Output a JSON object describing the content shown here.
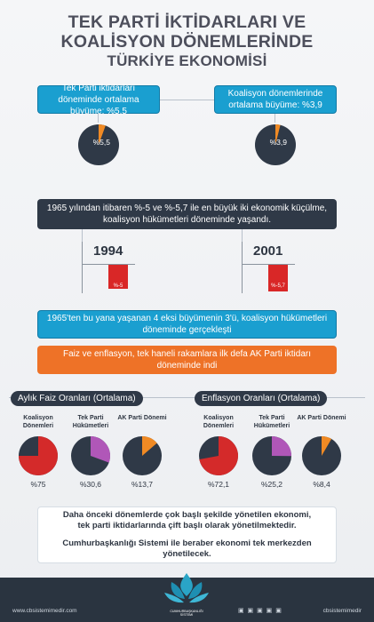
{
  "title": {
    "line1": "TEK PARTİ İKTİDARLARI VE",
    "line2": "KOALİSYON DÖNEMLERİNDE",
    "line3": "TÜRKİYE EKONOMİSİ"
  },
  "growth": {
    "left_box": "Tek Parti iktidarları döneminde ortalama büyüme: %5,5",
    "right_box": "Koalisyon dönemlerinde ortalama büyüme: %3,9",
    "left_pie_label": "%5,5",
    "right_pie_label": "%3,9",
    "left_value": 5.5,
    "right_value": 3.9
  },
  "contraction": {
    "text": "1965 yılından itibaren %-5 ve %-5,7 ile en büyük iki ekonomik küçülme, koalisyon hükümetleri döneminde yaşandı.",
    "bars": [
      {
        "year": "1994",
        "label": "%-5",
        "value": -5
      },
      {
        "year": "2001",
        "label": "%-5,7",
        "value": -5.7
      }
    ]
  },
  "facts": {
    "teal_box": "1965'ten bu yana yaşanan 4 eksi büyümenin 3'ü, koalisyon hükümetleri döneminde gerçekleşti",
    "orange_box": "Faiz ve enflasyon, tek haneli rakamlara ilk defa AK Parti iktidarı döneminde indi"
  },
  "interest": {
    "heading": "Aylık Faiz Oranları (Ortalama)",
    "items": [
      {
        "name": "Koalisyon Dönemleri",
        "label": "%75",
        "value": 75,
        "color": "#d42a2a"
      },
      {
        "name": "Tek Parti Hükümetleri",
        "label": "%30,6",
        "value": 30.6,
        "color": "#b057b8"
      },
      {
        "name": "AK Parti Dönemi",
        "label": "%13,7",
        "value": 13.7,
        "color": "#f08a24"
      }
    ]
  },
  "inflation": {
    "heading": "Enflasyon Oranları (Ortalama)",
    "items": [
      {
        "name": "Koalisyon Dönemleri",
        "label": "%72,1",
        "value": 72.1,
        "color": "#d42a2a"
      },
      {
        "name": "Tek Parti Hükümetleri",
        "label": "%25,2",
        "value": 25.2,
        "color": "#b057b8"
      },
      {
        "name": "AK Parti Dönemi",
        "label": "%8,4",
        "value": 8.4,
        "color": "#f08a24"
      }
    ]
  },
  "summary": {
    "line1": "Daha önceki dönemlerde çok başlı şekilde yönetilen ekonomi,",
    "line2": "tek parti iktidarlarında çift başlı olarak yönetilmektedir.",
    "line3": "Cumhurbaşkanlığı Sistemi ile beraber ekonomi tek merkezden yönetilecek."
  },
  "footer": {
    "left": "www.cbsistemimedir.com",
    "right": "cbsistemimedir",
    "logo_text": "CUMHURBAŞKANLIĞI SİSTEMİ"
  },
  "colors": {
    "pie_dark": "#2f3947",
    "pie_orange": "#f08a24",
    "teal": "#1a9fd0",
    "orange": "#ee7227",
    "red": "#d92727"
  }
}
